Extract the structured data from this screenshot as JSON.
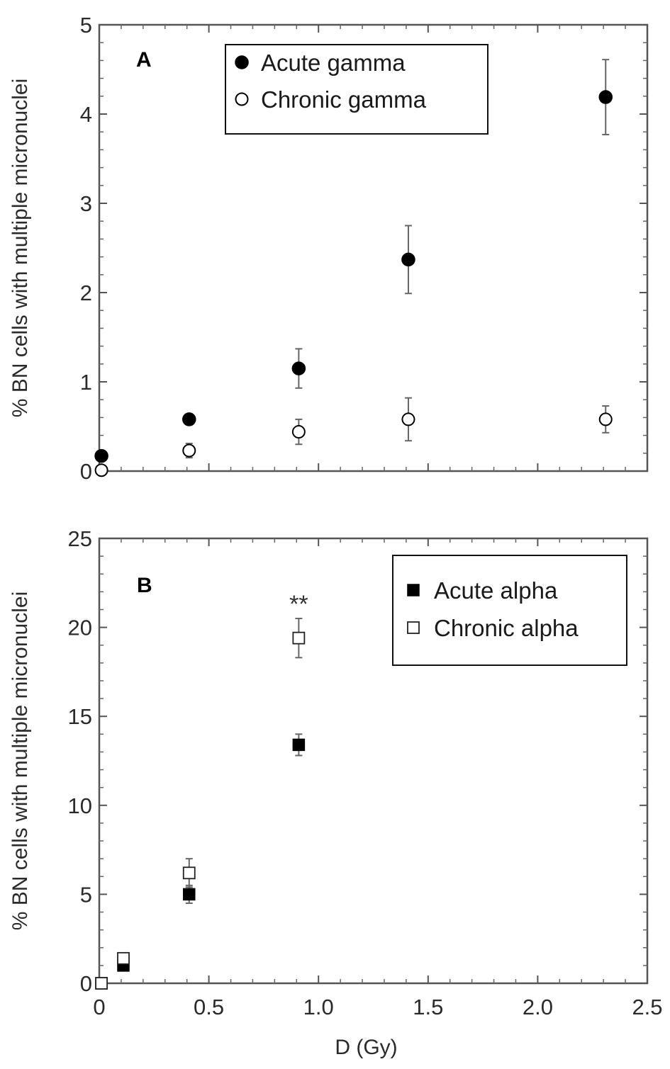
{
  "chart_data": [
    {
      "type": "scatter",
      "panel_label": "A",
      "ylabel": "% BN cells with multiple  micronuclei",
      "xlabel": "",
      "xlim": [
        0,
        2.5
      ],
      "ylim": [
        0,
        5
      ],
      "yticks": [
        "0",
        "1",
        "2",
        "3",
        "4",
        "5"
      ],
      "ytick_values": [
        0,
        1,
        2,
        3,
        4,
        5
      ],
      "xtick_values": [
        0,
        0.5,
        1.0,
        1.5,
        2.0,
        2.5
      ],
      "legend_position": "top-center",
      "series": [
        {
          "name": "Acute gamma",
          "marker": "filled-circle",
          "x": [
            0.01,
            0.41,
            0.91,
            1.41,
            2.31
          ],
          "y": [
            0.17,
            0.58,
            1.15,
            2.37,
            4.19
          ],
          "err": [
            0.0,
            0.06,
            0.22,
            0.38,
            0.42
          ]
        },
        {
          "name": "Chronic gamma",
          "marker": "open-circle",
          "x": [
            0.01,
            0.41,
            0.91,
            1.41,
            2.31
          ],
          "y": [
            0.01,
            0.23,
            0.44,
            0.58,
            0.58
          ],
          "err": [
            0.0,
            0.08,
            0.14,
            0.24,
            0.15
          ]
        }
      ]
    },
    {
      "type": "scatter",
      "panel_label": "B",
      "ylabel": "% BN cells with multiple  micronuclei",
      "xlabel": "D (Gy)",
      "xlim": [
        0,
        2.5
      ],
      "ylim": [
        0,
        25
      ],
      "yticks": [
        "0",
        "5",
        "10",
        "15",
        "20",
        "25"
      ],
      "ytick_values": [
        0,
        5,
        10,
        15,
        20,
        25
      ],
      "xticks": [
        "0",
        "0.5",
        "1.0",
        "1.5",
        "2.0",
        "2.5"
      ],
      "xtick_values": [
        0,
        0.5,
        1.0,
        1.5,
        2.0,
        2.5
      ],
      "legend_position": "top-right",
      "annotation": {
        "text": "**",
        "x": 0.91,
        "y": 21.5
      },
      "series": [
        {
          "name": "Acute alpha",
          "marker": "filled-square",
          "x": [
            0.01,
            0.11,
            0.41,
            0.91
          ],
          "y": [
            0.0,
            1.0,
            5.0,
            13.4
          ],
          "err": [
            0.0,
            0.0,
            0.5,
            0.6
          ]
        },
        {
          "name": "Chronic alpha",
          "marker": "open-square",
          "x": [
            0.01,
            0.11,
            0.41,
            0.91
          ],
          "y": [
            0.0,
            1.4,
            6.2,
            19.4
          ],
          "err": [
            0.0,
            0.0,
            0.8,
            1.1
          ]
        }
      ]
    }
  ]
}
